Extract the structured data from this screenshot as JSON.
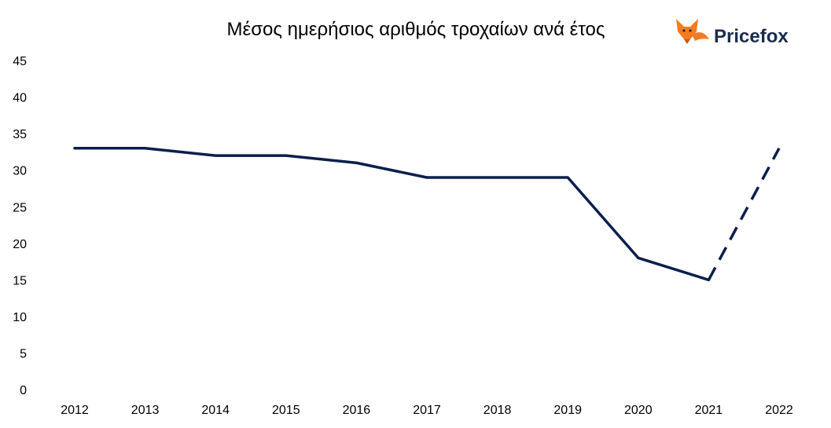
{
  "chart_data": {
    "type": "line",
    "title": "Μέσος ημερήσιος αριθμός τροχαίων ανά έτος",
    "xlabel": "",
    "ylabel": "",
    "categories": [
      "2012",
      "2013",
      "2014",
      "2015",
      "2016",
      "2017",
      "2018",
      "2019",
      "2020",
      "2021",
      "2022"
    ],
    "series": [
      {
        "values": [
          33,
          33,
          32,
          32,
          31,
          29,
          29,
          29,
          18,
          15,
          null
        ],
        "style": "solid"
      },
      {
        "values": [
          null,
          null,
          null,
          null,
          null,
          null,
          null,
          null,
          null,
          15,
          33
        ],
        "style": "dashed"
      }
    ],
    "ylim": [
      0,
      45
    ],
    "yticks": [
      0,
      5,
      10,
      15,
      20,
      25,
      30,
      35,
      40,
      45
    ],
    "grid": false,
    "legend": "none"
  },
  "logo": {
    "text": "Pricefox",
    "icon": "fox-icon",
    "text_color": "#1a2b4c",
    "icon_color": "#f47b20"
  },
  "colors": {
    "line": "#0b1f4d"
  }
}
